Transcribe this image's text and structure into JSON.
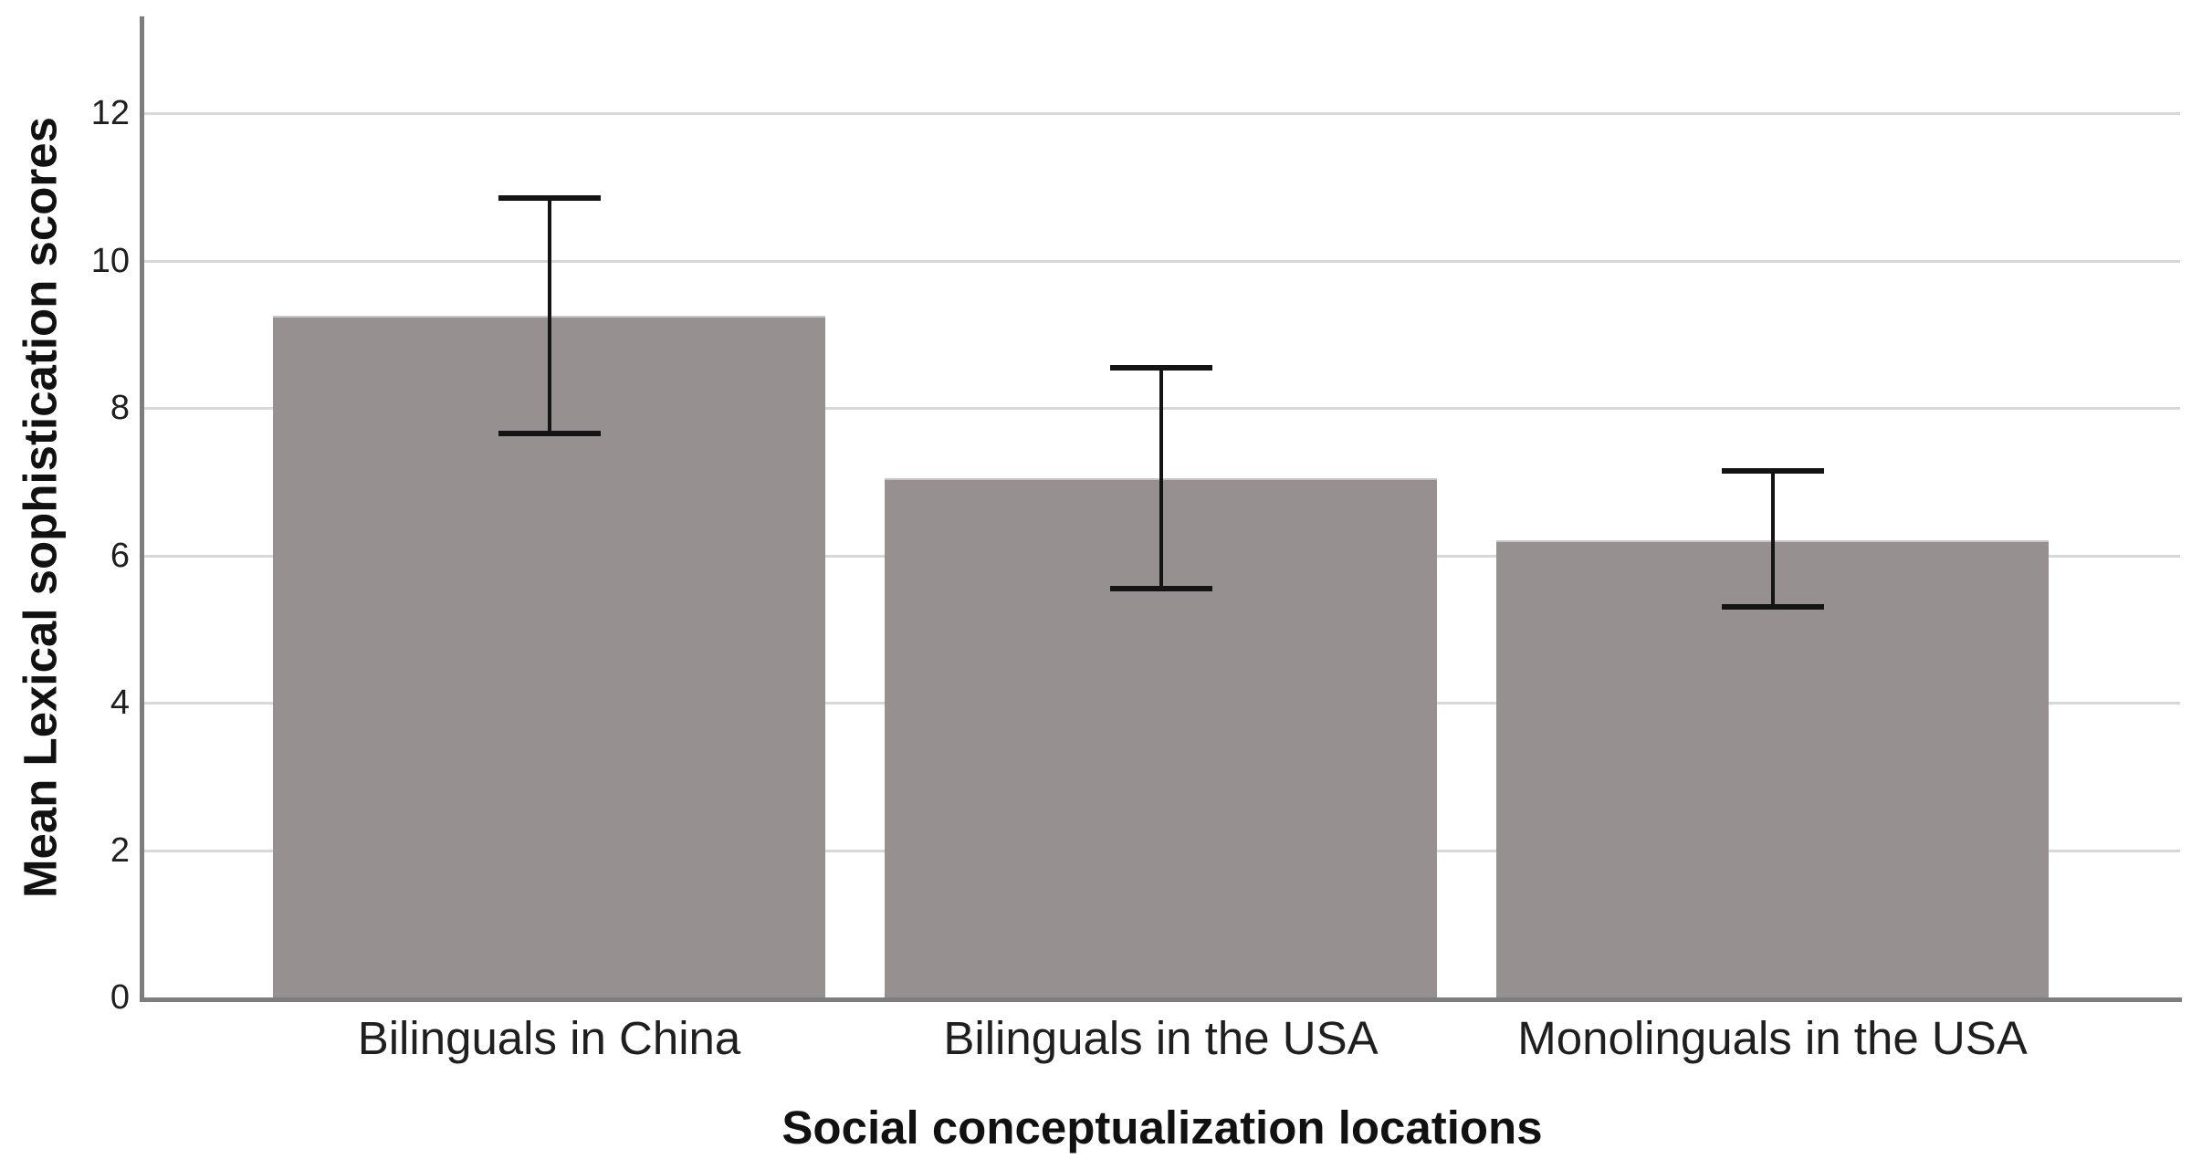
{
  "chart_data": {
    "type": "bar",
    "title": "",
    "xlabel": "Social conceptualization locations",
    "ylabel": "Mean Lexical sophistication scores",
    "categories": [
      "Bilinguals in China",
      "Bilinguals in the USA",
      "Monolinguals in the USA"
    ],
    "series": [
      {
        "name": "Mean Lexical sophistication scores",
        "values": [
          9.25,
          7.05,
          6.2
        ]
      }
    ],
    "error_bars": {
      "lower": [
        7.65,
        5.55,
        5.3
      ],
      "upper": [
        10.85,
        8.55,
        7.15
      ]
    },
    "yticks": [
      0,
      2,
      4,
      6,
      8,
      10,
      12
    ],
    "ylim": [
      0,
      13.3
    ],
    "grid": "horizontal",
    "legend": "none",
    "colors": {
      "bar": "#969190",
      "bar_edge": "#c9c6c5",
      "gridline": "#d8d8d8",
      "axis": "#7d7d7d",
      "error": "#141414",
      "text": "#1f1f1f",
      "background": "#ffffff"
    }
  }
}
